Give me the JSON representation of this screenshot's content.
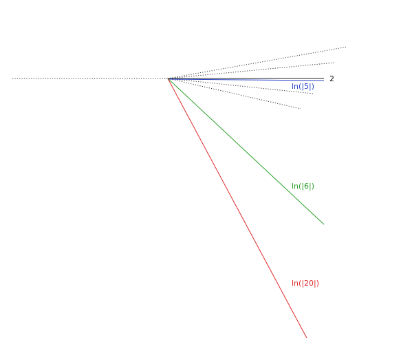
{
  "diagram": {
    "lines": [
      {
        "id": "ln5",
        "label": "ln(|5|)",
        "color": "#2a44c8"
      },
      {
        "id": "ln6",
        "label": "ln(|6|)",
        "color": "#2aa02a"
      },
      {
        "id": "ln20",
        "label": "ln(|20|)",
        "color": "#e02a2a"
      }
    ],
    "edge_label": "2",
    "colors": {
      "dotted": "#333333",
      "black_line": "#222222",
      "background": "#ffffff"
    }
  }
}
